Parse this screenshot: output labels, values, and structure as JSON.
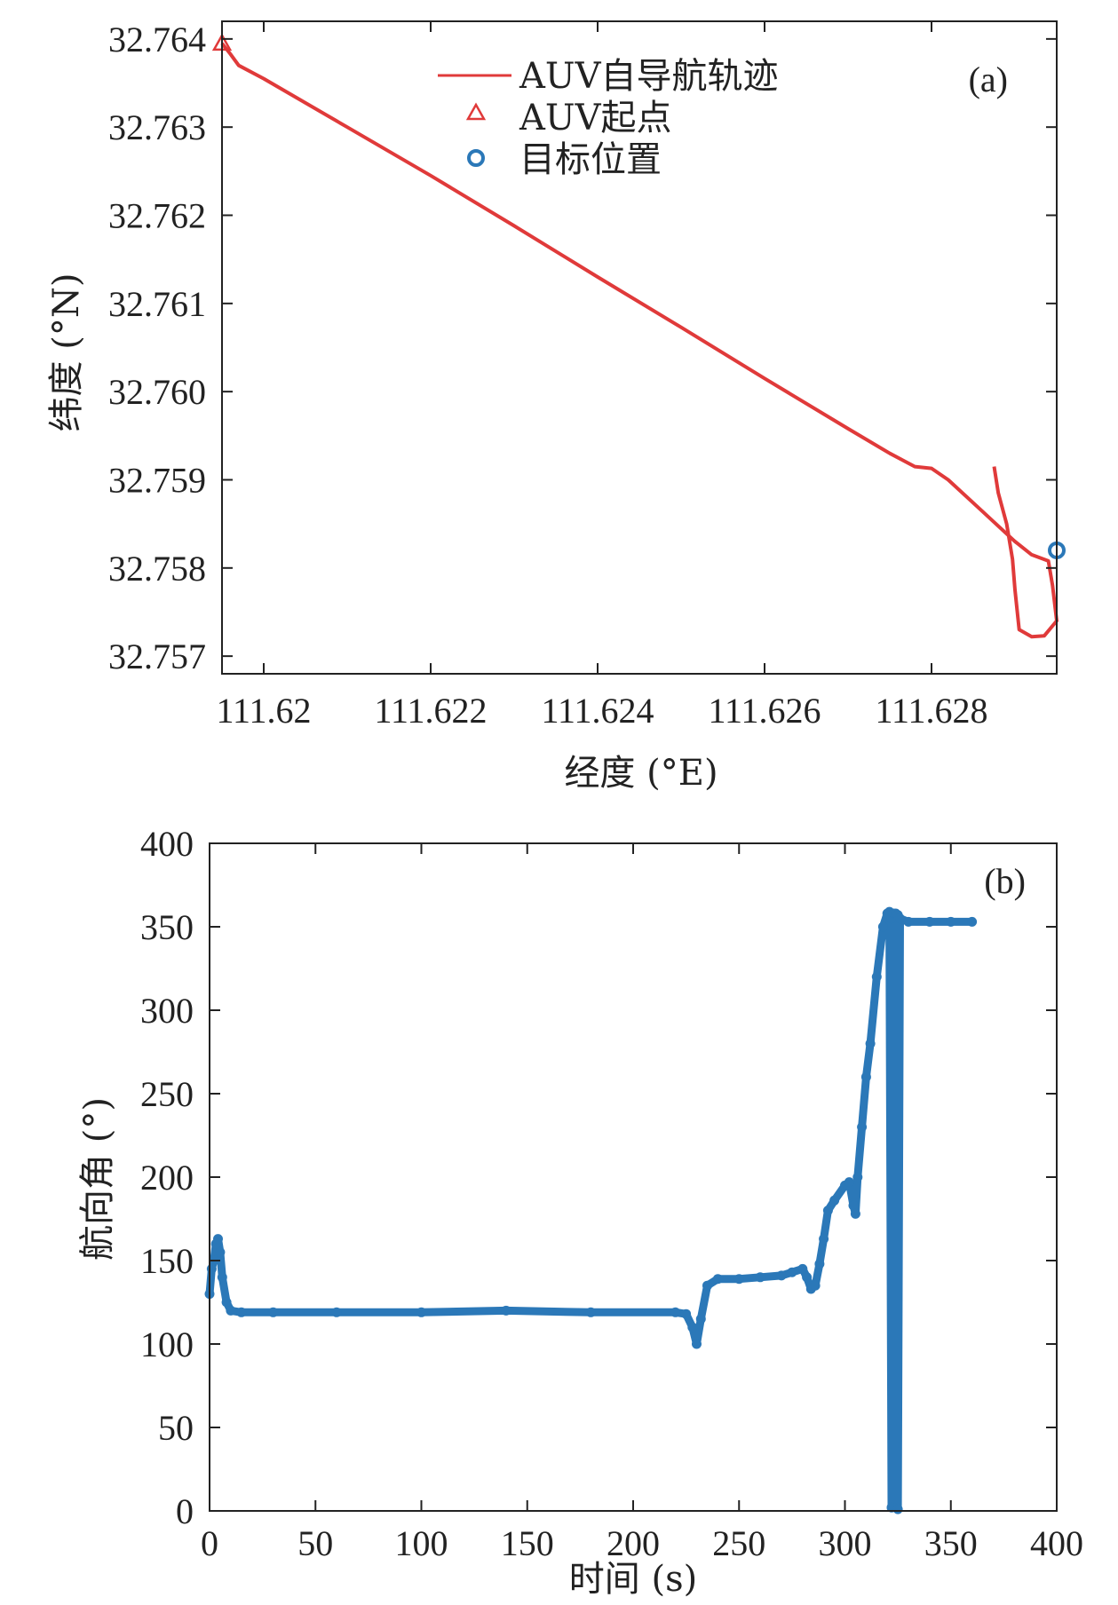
{
  "chart_data": [
    {
      "type": "line",
      "panel_label": "(a)",
      "xlabel": "经度 (°E)",
      "ylabel": "纬度 (°N)",
      "xlim": [
        111.6195,
        111.6295
      ],
      "ylim": [
        32.7568,
        32.7642
      ],
      "xticks": [
        111.62,
        111.622,
        111.624,
        111.626,
        111.628
      ],
      "xtick_labels": [
        "111.62",
        "111.622",
        "111.624",
        "111.626",
        "111.628"
      ],
      "yticks": [
        32.757,
        32.758,
        32.759,
        32.76,
        32.761,
        32.762,
        32.763,
        32.764
      ],
      "ytick_labels": [
        "32.757",
        "32.758",
        "32.759",
        "32.760",
        "32.761",
        "32.762",
        "32.763",
        "32.764"
      ],
      "grid": false,
      "legend_position": "top-center",
      "colors": {
        "track": "#e03a3a",
        "start": "#e03a3a",
        "target": "#2b78b8"
      },
      "series": [
        {
          "name": "AUV自导航轨迹",
          "kind": "line",
          "x": [
            111.6195,
            111.6196,
            111.6197,
            111.62,
            111.621,
            111.622,
            111.623,
            111.624,
            111.625,
            111.626,
            111.627,
            111.6275,
            111.6278,
            111.628,
            111.6282,
            111.6286,
            111.629,
            111.6292,
            111.6294,
            111.62945,
            111.6295,
            111.62935,
            111.6292,
            111.62905,
            111.629,
            111.62897,
            111.6289,
            111.6288,
            111.62875
          ],
          "y": [
            32.76395,
            32.76383,
            32.7637,
            32.76355,
            32.763,
            32.76245,
            32.76188,
            32.7613,
            32.76073,
            32.76015,
            32.75958,
            32.7593,
            32.75915,
            32.75913,
            32.759,
            32.75865,
            32.7583,
            32.75815,
            32.75808,
            32.7578,
            32.7574,
            32.75723,
            32.75722,
            32.7573,
            32.75775,
            32.7581,
            32.7585,
            32.75885,
            32.75915
          ]
        },
        {
          "name": "AUV起点",
          "kind": "marker",
          "marker": "triangle",
          "x": [
            111.6195
          ],
          "y": [
            32.76395
          ]
        },
        {
          "name": "目标位置",
          "kind": "marker",
          "marker": "circle",
          "x": [
            111.6295
          ],
          "y": [
            32.7582
          ]
        }
      ]
    },
    {
      "type": "scatter",
      "panel_label": "(b)",
      "xlabel": "时间 (s)",
      "ylabel": "航向角 (°)",
      "xlim": [
        0,
        400
      ],
      "ylim": [
        0,
        400
      ],
      "xticks": [
        0,
        50,
        100,
        150,
        200,
        250,
        300,
        350,
        400
      ],
      "xtick_labels": [
        "0",
        "50",
        "100",
        "150",
        "200",
        "250",
        "300",
        "350",
        "400"
      ],
      "yticks": [
        0,
        50,
        100,
        150,
        200,
        250,
        300,
        350,
        400
      ],
      "ytick_labels": [
        "0",
        "50",
        "100",
        "150",
        "200",
        "250",
        "300",
        "350",
        "400"
      ],
      "grid": false,
      "colors": {
        "heading": "#2b78b8"
      },
      "series": [
        {
          "x": [
            0,
            1,
            2,
            3,
            4,
            5,
            6,
            8,
            10,
            15,
            30,
            60,
            100,
            140,
            180,
            220,
            225,
            228,
            230,
            232,
            235,
            240,
            250,
            260,
            270,
            275,
            280,
            282,
            284,
            286,
            288,
            290,
            292,
            295,
            300,
            302,
            304,
            305,
            306,
            308,
            310,
            312,
            315,
            318,
            320,
            321,
            322,
            322,
            323,
            324,
            325,
            325,
            326,
            330,
            340,
            350,
            360
          ],
          "y": [
            130,
            145,
            150,
            160,
            163,
            155,
            140,
            125,
            120,
            119,
            119,
            119,
            119,
            120,
            119,
            119,
            118,
            110,
            100,
            115,
            135,
            139,
            139,
            140,
            141,
            143,
            145,
            140,
            133,
            135,
            148,
            163,
            180,
            186,
            195,
            197,
            183,
            178,
            200,
            230,
            260,
            280,
            320,
            350,
            358,
            359,
            2,
            355,
            358,
            358,
            357,
            1,
            355,
            353,
            353,
            353,
            353
          ]
        }
      ]
    }
  ]
}
